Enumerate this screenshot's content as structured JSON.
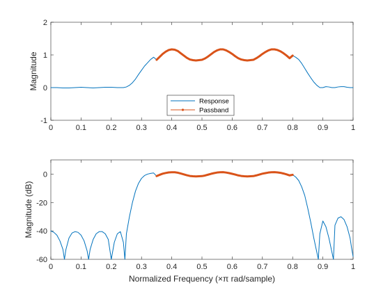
{
  "figure": {
    "background": "#ffffff",
    "axis_color": "#262626",
    "response_color": "#0072BD",
    "passband_color": "#D95319"
  },
  "chart_data": [
    {
      "type": "line",
      "title": "",
      "xlabel": "",
      "ylabel": "Magnitude",
      "xlim": [
        0,
        1
      ],
      "ylim": [
        -1,
        2
      ],
      "xticks": [
        0,
        0.1,
        0.2,
        0.3,
        0.4,
        0.5,
        0.6,
        0.7,
        0.8,
        0.9,
        1
      ],
      "xtick_labels": [
        "0",
        "0.1",
        "0.2",
        "0.3",
        "0.4",
        "0.5",
        "0.6",
        "0.7",
        "0.8",
        "0.9",
        "1"
      ],
      "yticks": [
        -1,
        0,
        1,
        2
      ],
      "ytick_labels": [
        "-1",
        "0",
        "1",
        "2"
      ],
      "grid": false,
      "legend": {
        "placement": "lower-center",
        "entries": [
          "Response",
          "Passband"
        ]
      },
      "series": [
        {
          "name": "Response",
          "color": "#0072BD",
          "x": [
            0,
            0.02,
            0.04,
            0.06,
            0.08,
            0.1,
            0.12,
            0.14,
            0.16,
            0.18,
            0.2,
            0.22,
            0.24,
            0.25,
            0.26,
            0.27,
            0.28,
            0.29,
            0.3,
            0.31,
            0.32,
            0.33,
            0.34,
            0.35,
            0.36,
            0.37,
            0.38,
            0.39,
            0.4,
            0.41,
            0.42,
            0.43,
            0.44,
            0.45,
            0.46,
            0.47,
            0.48,
            0.49,
            0.5,
            0.51,
            0.52,
            0.53,
            0.54,
            0.55,
            0.56,
            0.57,
            0.58,
            0.59,
            0.6,
            0.61,
            0.62,
            0.63,
            0.64,
            0.65,
            0.66,
            0.67,
            0.68,
            0.69,
            0.7,
            0.71,
            0.72,
            0.73,
            0.74,
            0.75,
            0.76,
            0.77,
            0.78,
            0.79,
            0.8,
            0.81,
            0.82,
            0.83,
            0.84,
            0.85,
            0.86,
            0.87,
            0.88,
            0.89,
            0.9,
            0.91,
            0.92,
            0.93,
            0.94,
            0.95,
            0.96,
            0.97,
            0.98,
            0.99,
            1.0
          ],
          "y": [
            0.0,
            0.0,
            -0.01,
            -0.01,
            0.0,
            0.01,
            0.0,
            -0.01,
            0.0,
            0.01,
            0.01,
            0.0,
            0.0,
            0.02,
            0.07,
            0.15,
            0.26,
            0.4,
            0.53,
            0.66,
            0.76,
            0.86,
            0.93,
            0.85,
            0.94,
            1.03,
            1.1,
            1.15,
            1.17,
            1.16,
            1.12,
            1.05,
            0.98,
            0.91,
            0.86,
            0.84,
            0.83,
            0.84,
            0.85,
            0.89,
            0.95,
            1.02,
            1.09,
            1.14,
            1.17,
            1.17,
            1.14,
            1.09,
            1.03,
            0.96,
            0.9,
            0.86,
            0.84,
            0.83,
            0.84,
            0.85,
            0.9,
            0.96,
            1.03,
            1.09,
            1.14,
            1.17,
            1.17,
            1.15,
            1.11,
            1.05,
            0.98,
            0.9,
            0.98,
            0.93,
            0.86,
            0.74,
            0.59,
            0.44,
            0.3,
            0.17,
            0.07,
            0.0,
            0.0,
            0.03,
            0.02,
            0.0,
            0.0,
            0.02,
            0.03,
            0.03,
            0.01,
            0.0,
            0.0
          ]
        },
        {
          "name": "Passband",
          "color": "#D95319",
          "x": [
            0.35,
            0.36,
            0.37,
            0.38,
            0.39,
            0.4,
            0.41,
            0.42,
            0.43,
            0.44,
            0.45,
            0.46,
            0.47,
            0.48,
            0.49,
            0.5,
            0.51,
            0.52,
            0.53,
            0.54,
            0.55,
            0.56,
            0.57,
            0.58,
            0.59,
            0.6,
            0.61,
            0.62,
            0.63,
            0.64,
            0.65,
            0.66,
            0.67,
            0.68,
            0.69,
            0.7,
            0.71,
            0.72,
            0.73,
            0.74,
            0.75,
            0.76,
            0.77,
            0.78,
            0.79,
            0.8
          ],
          "y": [
            0.85,
            0.94,
            1.03,
            1.1,
            1.15,
            1.17,
            1.16,
            1.12,
            1.05,
            0.98,
            0.91,
            0.86,
            0.84,
            0.83,
            0.84,
            0.85,
            0.89,
            0.95,
            1.02,
            1.09,
            1.14,
            1.17,
            1.17,
            1.14,
            1.09,
            1.03,
            0.96,
            0.9,
            0.86,
            0.84,
            0.83,
            0.84,
            0.85,
            0.9,
            0.96,
            1.03,
            1.09,
            1.14,
            1.17,
            1.17,
            1.15,
            1.11,
            1.05,
            0.98,
            0.9,
            0.98
          ]
        }
      ]
    },
    {
      "type": "line",
      "title": "",
      "xlabel": "Normalized Frequency (×π rad/sample)",
      "ylabel": "Magnitude (dB)",
      "xlim": [
        0,
        1
      ],
      "ylim": [
        -60,
        10
      ],
      "xticks": [
        0,
        0.1,
        0.2,
        0.3,
        0.4,
        0.5,
        0.6,
        0.7,
        0.8,
        0.9,
        1
      ],
      "xtick_labels": [
        "0",
        "0.1",
        "0.2",
        "0.3",
        "0.4",
        "0.5",
        "0.6",
        "0.7",
        "0.8",
        "0.9",
        "1"
      ],
      "yticks": [
        -60,
        -40,
        -20,
        0
      ],
      "ytick_labels": [
        "-60",
        "-40",
        "-20",
        "0"
      ],
      "grid": false,
      "series": [
        {
          "color": "#0072BD",
          "x": [
            0,
            0.01,
            0.02,
            0.03,
            0.04,
            0.045,
            0.05,
            0.06,
            0.07,
            0.08,
            0.09,
            0.1,
            0.11,
            0.12,
            0.125,
            0.13,
            0.14,
            0.15,
            0.16,
            0.17,
            0.18,
            0.19,
            0.2,
            0.21,
            0.22,
            0.23,
            0.24,
            0.245,
            0.25,
            0.26,
            0.27,
            0.28,
            0.29,
            0.3,
            0.31,
            0.32,
            0.33,
            0.34,
            0.35,
            0.36,
            0.37,
            0.38,
            0.39,
            0.4,
            0.41,
            0.42,
            0.43,
            0.44,
            0.45,
            0.46,
            0.47,
            0.48,
            0.49,
            0.5,
            0.51,
            0.52,
            0.53,
            0.54,
            0.55,
            0.56,
            0.57,
            0.58,
            0.59,
            0.6,
            0.61,
            0.62,
            0.63,
            0.64,
            0.65,
            0.66,
            0.67,
            0.68,
            0.69,
            0.7,
            0.71,
            0.72,
            0.73,
            0.74,
            0.75,
            0.76,
            0.77,
            0.78,
            0.79,
            0.8,
            0.81,
            0.82,
            0.83,
            0.84,
            0.85,
            0.86,
            0.87,
            0.88,
            0.885,
            0.89,
            0.9,
            0.91,
            0.92,
            0.93,
            0.935,
            0.94,
            0.95,
            0.96,
            0.97,
            0.98,
            0.99,
            0.995,
            1.0
          ],
          "y": [
            -40,
            -41,
            -43,
            -47,
            -53,
            -60,
            -53,
            -45,
            -41.5,
            -40.5,
            -41,
            -43,
            -47,
            -54,
            -60,
            -53,
            -46,
            -42,
            -40.5,
            -40.5,
            -42,
            -46,
            -60,
            -48,
            -42,
            -40.5,
            -48,
            -60,
            -42,
            -30,
            -20,
            -12,
            -6.5,
            -3,
            -1,
            0,
            0.5,
            0.8,
            -1.4,
            -0.5,
            0.3,
            0.8,
            1.2,
            1.3,
            1.3,
            1.0,
            0.4,
            -0.2,
            -0.8,
            -1.3,
            -1.5,
            -1.6,
            -1.5,
            -1.4,
            -1.0,
            -0.4,
            0.2,
            0.7,
            1.1,
            1.3,
            1.35,
            1.1,
            0.7,
            0.2,
            -0.3,
            -0.9,
            -1.3,
            -1.5,
            -1.6,
            -1.5,
            -1.4,
            -0.9,
            -0.3,
            0.3,
            0.7,
            1.1,
            1.3,
            1.35,
            1.2,
            0.9,
            0.4,
            -0.2,
            -0.9,
            -0.5,
            -2,
            -4.5,
            -9,
            -15,
            -24,
            -34,
            -45,
            -55,
            -60,
            -42,
            -33,
            -37,
            -45,
            -55,
            -60,
            -36,
            -31,
            -30,
            -32,
            -37,
            -45,
            -52,
            -58
          ]
        },
        {
          "color": "#D95319",
          "x": [
            0.35,
            0.36,
            0.37,
            0.38,
            0.39,
            0.4,
            0.41,
            0.42,
            0.43,
            0.44,
            0.45,
            0.46,
            0.47,
            0.48,
            0.49,
            0.5,
            0.51,
            0.52,
            0.53,
            0.54,
            0.55,
            0.56,
            0.57,
            0.58,
            0.59,
            0.6,
            0.61,
            0.62,
            0.63,
            0.64,
            0.65,
            0.66,
            0.67,
            0.68,
            0.69,
            0.7,
            0.71,
            0.72,
            0.73,
            0.74,
            0.75,
            0.76,
            0.77,
            0.78,
            0.79,
            0.8
          ],
          "y": [
            -1.4,
            -0.5,
            0.3,
            0.8,
            1.2,
            1.3,
            1.3,
            1.0,
            0.4,
            -0.2,
            -0.8,
            -1.3,
            -1.5,
            -1.6,
            -1.5,
            -1.4,
            -1.0,
            -0.4,
            0.2,
            0.7,
            1.1,
            1.3,
            1.35,
            1.1,
            0.7,
            0.2,
            -0.3,
            -0.9,
            -1.3,
            -1.5,
            -1.6,
            -1.5,
            -1.4,
            -0.9,
            -0.3,
            0.3,
            0.7,
            1.1,
            1.3,
            1.35,
            1.2,
            0.9,
            0.4,
            -0.2,
            -0.9,
            -0.5
          ]
        }
      ]
    }
  ]
}
